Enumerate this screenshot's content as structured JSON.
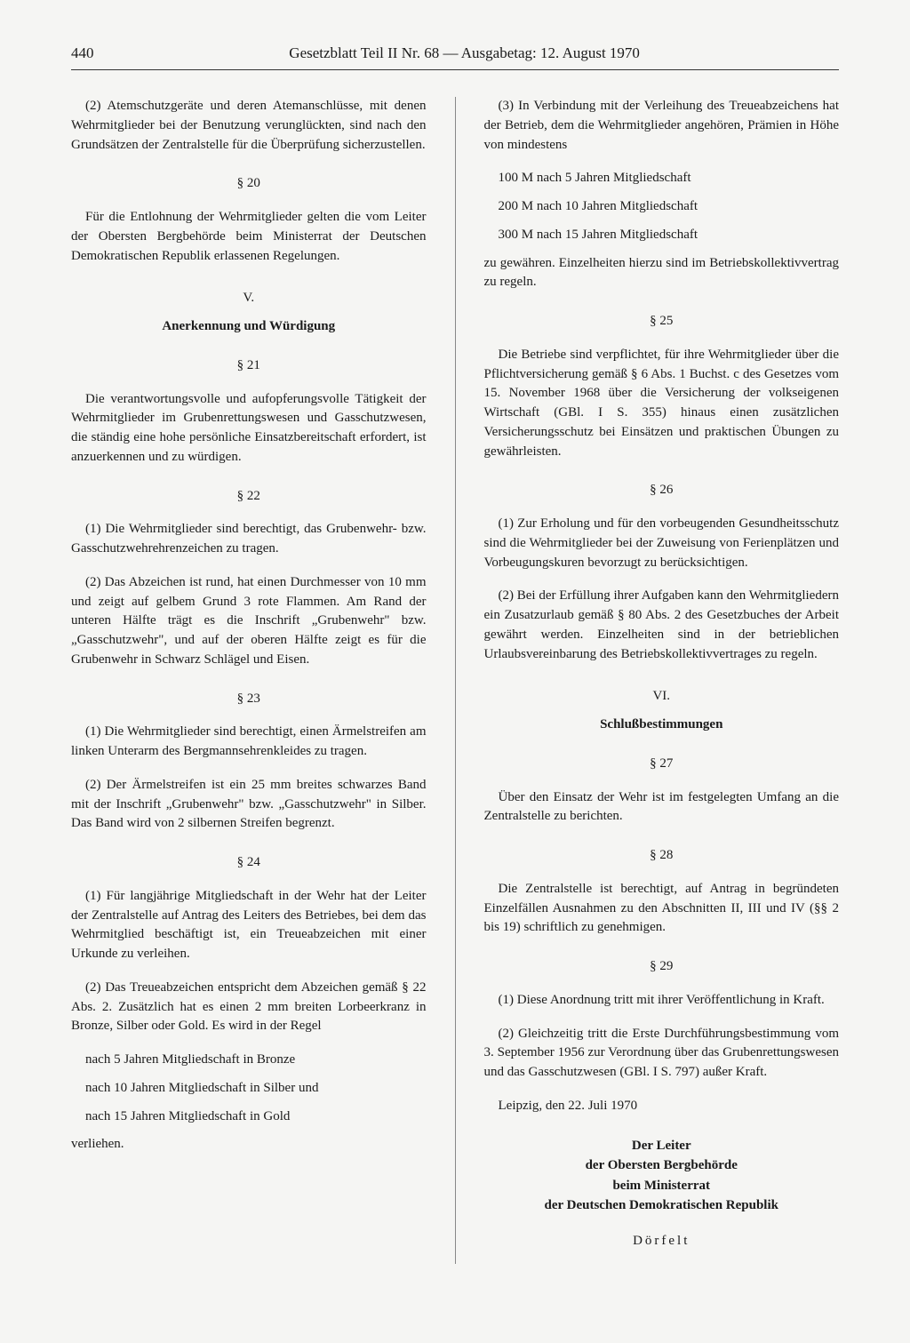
{
  "header": {
    "pageNum": "440",
    "title": "Gesetzblatt Teil II Nr. 68 — Ausgabetag: 12. August 1970"
  },
  "left": {
    "p1": "(2) Atemschutzgeräte und deren Atemanschlüsse, mit denen Wehrmitglieder bei der Benutzung verunglückten, sind nach den Grundsätzen der Zentralstelle für die Überprüfung sicherzustellen.",
    "s20": "§ 20",
    "p2": "Für die Entlohnung der Wehrmitglieder gelten die vom Leiter der Obersten Bergbehörde beim Ministerrat der Deutschen Demokratischen Republik erlassenen Regelungen.",
    "roman5": "V.",
    "title5": "Anerkennung und Würdigung",
    "s21": "§ 21",
    "p3": "Die verantwortungsvolle und aufopferungsvolle Tätigkeit der Wehrmitglieder im Grubenrettungswesen und Gasschutzwesen, die ständig eine hohe persönliche Einsatzbereitschaft erfordert, ist anzuerkennen und zu würdigen.",
    "s22": "§ 22",
    "p4": "(1) Die Wehrmitglieder sind berechtigt, das Grubenwehr- bzw. Gasschutzwehrehrenzeichen zu tragen.",
    "p5": "(2) Das Abzeichen ist rund, hat einen Durchmesser von 10 mm und zeigt auf gelbem Grund 3 rote Flammen. Am Rand der unteren Hälfte trägt es die Inschrift „Grubenwehr\" bzw. „Gasschutzwehr\", und auf der oberen Hälfte zeigt es für die Grubenwehr in Schwarz Schlägel und Eisen.",
    "s23": "§ 23",
    "p6": "(1) Die Wehrmitglieder sind berechtigt, einen Ärmelstreifen am linken Unterarm des Bergmannsehrenkleides zu tragen.",
    "p7": "(2) Der Ärmelstreifen ist ein 25 mm breites schwarzes Band mit der Inschrift „Grubenwehr\" bzw. „Gasschutzwehr\" in Silber. Das Band wird von 2 silbernen Streifen begrenzt.",
    "s24": "§ 24",
    "p8": "(1) Für langjährige Mitgliedschaft in der Wehr hat der Leiter der Zentralstelle auf Antrag des Leiters des Betriebes, bei dem das Wehrmitglied beschäftigt ist, ein Treueabzeichen mit einer Urkunde zu verleihen.",
    "p9": "(2) Das Treueabzeichen entspricht dem Abzeichen gemäß § 22 Abs. 2. Zusätzlich hat es einen 2 mm breiten Lorbeerkranz in Bronze, Silber oder Gold. Es wird in der Regel",
    "l1": "nach  5 Jahren Mitgliedschaft in Bronze",
    "l2": "nach 10 Jahren Mitgliedschaft in Silber und",
    "l3": "nach 15 Jahren Mitgliedschaft in Gold",
    "p10": "verliehen."
  },
  "right": {
    "p1": "(3) In Verbindung mit der Verleihung des Treueabzeichens hat der Betrieb, dem die Wehrmitglieder angehören, Prämien in Höhe von mindestens",
    "l1": "100 M nach  5 Jahren Mitgliedschaft",
    "l2": "200 M nach 10 Jahren Mitgliedschaft",
    "l3": "300 M nach 15 Jahren Mitgliedschaft",
    "p2": "zu gewähren. Einzelheiten hierzu sind im Betriebskollektivvertrag zu regeln.",
    "s25": "§ 25",
    "p3": "Die Betriebe sind verpflichtet, für ihre Wehrmitglieder über die Pflichtversicherung gemäß § 6 Abs. 1 Buchst. c des Gesetzes vom 15. November 1968 über die Versicherung der volkseigenen Wirtschaft (GBl. I S. 355) hinaus einen zusätzlichen Versicherungsschutz bei Einsätzen und praktischen Übungen zu gewährleisten.",
    "s26": "§ 26",
    "p4": "(1) Zur Erholung und für den vorbeugenden Gesundheitsschutz sind die Wehrmitglieder bei der Zuweisung von Ferienplätzen und Vorbeugungskuren bevorzugt zu berücksichtigen.",
    "p5": "(2) Bei der Erfüllung ihrer Aufgaben kann den Wehrmitgliedern ein Zusatzurlaub gemäß § 80 Abs. 2 des Gesetzbuches der Arbeit gewährt werden. Einzelheiten sind in der betrieblichen Urlaubsvereinbarung des Betriebskollektivvertrages zu regeln.",
    "roman6": "VI.",
    "title6": "Schlußbestimmungen",
    "s27": "§ 27",
    "p6": "Über den Einsatz der Wehr ist im festgelegten Umfang an die Zentralstelle zu berichten.",
    "s28": "§ 28",
    "p7": "Die Zentralstelle ist berechtigt, auf Antrag in begründeten Einzelfällen Ausnahmen zu den Abschnitten II, III und IV (§§ 2 bis 19) schriftlich zu genehmigen.",
    "s29": "§ 29",
    "p8": "(1) Diese Anordnung tritt mit ihrer Veröffentlichung in Kraft.",
    "p9": "(2) Gleichzeitig tritt die Erste Durchführungsbestimmung vom 3. September 1956 zur Verordnung über das Grubenrettungswesen und das Gasschutzwesen (GBl. I S. 797) außer Kraft.",
    "place": "Leipzig, den 22. Juli 1970",
    "sig1": "Der Leiter",
    "sig2": "der Obersten Bergbehörde",
    "sig3": "beim Ministerrat",
    "sig4": "der Deutschen Demokratischen Republik",
    "name": "Dörfelt"
  }
}
